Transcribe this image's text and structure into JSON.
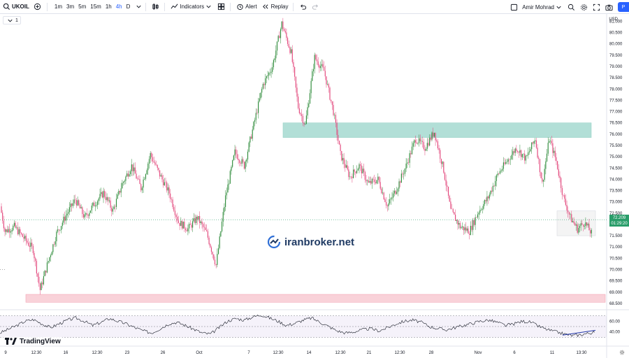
{
  "toolbar": {
    "symbol": "UKOIL",
    "timeframes": [
      "1m",
      "3m",
      "5m",
      "15m",
      "1h",
      "4h",
      "D"
    ],
    "active_timeframe": "4h",
    "indicators_label": "Indicators",
    "alert_label": "Alert",
    "replay_label": "Replay",
    "user_name": "Amir Mohrad",
    "publish_label": "P"
  },
  "legend": {
    "pane_label": "1"
  },
  "currency": "USD",
  "watermark": {
    "text": "iranbroker.net"
  },
  "brand": {
    "text": "TradingView"
  },
  "price_badge": {
    "price": "72.209",
    "countdown": "01:29:20"
  },
  "colors": {
    "up": "#26a69a",
    "up_body": "#2e8b3a",
    "down": "#e2457a",
    "resistance_zone": "#b2dfd7",
    "support_zone": "#f9d2d9",
    "rsi_line": "#131722",
    "trendline": "#2136a8"
  },
  "chart_data": {
    "type": "candlestick",
    "title": "",
    "price_axis": {
      "ticks": [
        "81.000",
        "80.500",
        "80.000",
        "79.500",
        "79.000",
        "78.500",
        "78.000",
        "77.500",
        "77.000",
        "76.500",
        "76.000",
        "75.500",
        "75.000",
        "74.500",
        "74.000",
        "73.500",
        "73.000",
        "72.500",
        "72.000",
        "71.500",
        "71.000",
        "70.500",
        "70.000",
        "69.500",
        "69.000",
        "68.500"
      ],
      "range": [
        68.25,
        81.2
      ]
    },
    "time_axis": {
      "labels": [
        "9",
        "12:30",
        "16",
        "12:30",
        "23",
        "26",
        "Oct",
        "7",
        "12:30",
        "14",
        "12:30",
        "21",
        "12:30",
        "28",
        "Nov",
        "6",
        "11",
        "13:30"
      ]
    },
    "zones": [
      {
        "name": "resistance",
        "from": 75.85,
        "to": 76.5
      },
      {
        "name": "support",
        "from": 68.55,
        "to": 68.9
      }
    ],
    "anchors": [
      [
        0,
        72.8
      ],
      [
        4,
        71.7
      ],
      [
        12,
        71.9
      ],
      [
        20,
        71.4
      ],
      [
        28,
        70.9
      ],
      [
        34,
        69.1
      ],
      [
        40,
        70.2
      ],
      [
        48,
        71.6
      ],
      [
        56,
        72.4
      ],
      [
        64,
        73.1
      ],
      [
        72,
        72.3
      ],
      [
        80,
        72.9
      ],
      [
        88,
        73.4
      ],
      [
        96,
        72.6
      ],
      [
        104,
        73.8
      ],
      [
        112,
        74.6
      ],
      [
        120,
        73.6
      ],
      [
        128,
        75.1
      ],
      [
        136,
        74.2
      ],
      [
        144,
        73.4
      ],
      [
        152,
        72.1
      ],
      [
        160,
        71.8
      ],
      [
        168,
        72.3
      ],
      [
        176,
        71.6
      ],
      [
        184,
        70.2
      ],
      [
        192,
        73.2
      ],
      [
        200,
        75.2
      ],
      [
        208,
        74.6
      ],
      [
        216,
        76.4
      ],
      [
        224,
        78.2
      ],
      [
        232,
        79.0
      ],
      [
        240,
        80.9
      ],
      [
        248,
        79.6
      ],
      [
        254,
        77.2
      ],
      [
        260,
        76.4
      ],
      [
        268,
        79.4
      ],
      [
        276,
        78.8
      ],
      [
        284,
        77.0
      ],
      [
        290,
        75.1
      ],
      [
        298,
        74.1
      ],
      [
        306,
        74.6
      ],
      [
        314,
        73.8
      ],
      [
        322,
        74.0
      ],
      [
        330,
        72.8
      ],
      [
        338,
        73.6
      ],
      [
        346,
        74.6
      ],
      [
        354,
        75.8
      ],
      [
        362,
        75.4
      ],
      [
        370,
        76.1
      ],
      [
        378,
        74.4
      ],
      [
        384,
        72.6
      ],
      [
        392,
        71.9
      ],
      [
        400,
        71.7
      ],
      [
        408,
        72.6
      ],
      [
        416,
        73.2
      ],
      [
        424,
        74.2
      ],
      [
        432,
        74.8
      ],
      [
        440,
        75.4
      ],
      [
        448,
        74.9
      ],
      [
        456,
        75.8
      ],
      [
        462,
        73.8
      ],
      [
        468,
        75.8
      ],
      [
        474,
        74.8
      ],
      [
        480,
        73.2
      ],
      [
        486,
        72.3
      ],
      [
        492,
        71.8
      ],
      [
        498,
        72.1
      ],
      [
        504,
        71.6
      ]
    ],
    "rsi": {
      "levels": [
        70,
        50,
        30
      ],
      "ticks": [
        "60.00",
        "40.00"
      ],
      "values": [
        38,
        45,
        52,
        60,
        63,
        55,
        48,
        55,
        62,
        66,
        60,
        52,
        58,
        65,
        60,
        55,
        48,
        42,
        38,
        46,
        55,
        58,
        52,
        45,
        38,
        36,
        48,
        60,
        65,
        62,
        68,
        72,
        66,
        60,
        52,
        56,
        62,
        66,
        58,
        50,
        42,
        38,
        40,
        44,
        46,
        42,
        48,
        55,
        60,
        62,
        58,
        50,
        46,
        44,
        48,
        52,
        56,
        60,
        62,
        58,
        52,
        55,
        60,
        58,
        50,
        44,
        40,
        36,
        33,
        35,
        38,
        40,
        42
      ]
    },
    "trendline_rsi": {
      "from": [
        458,
        34
      ],
      "to": [
        494,
        43
      ]
    }
  }
}
